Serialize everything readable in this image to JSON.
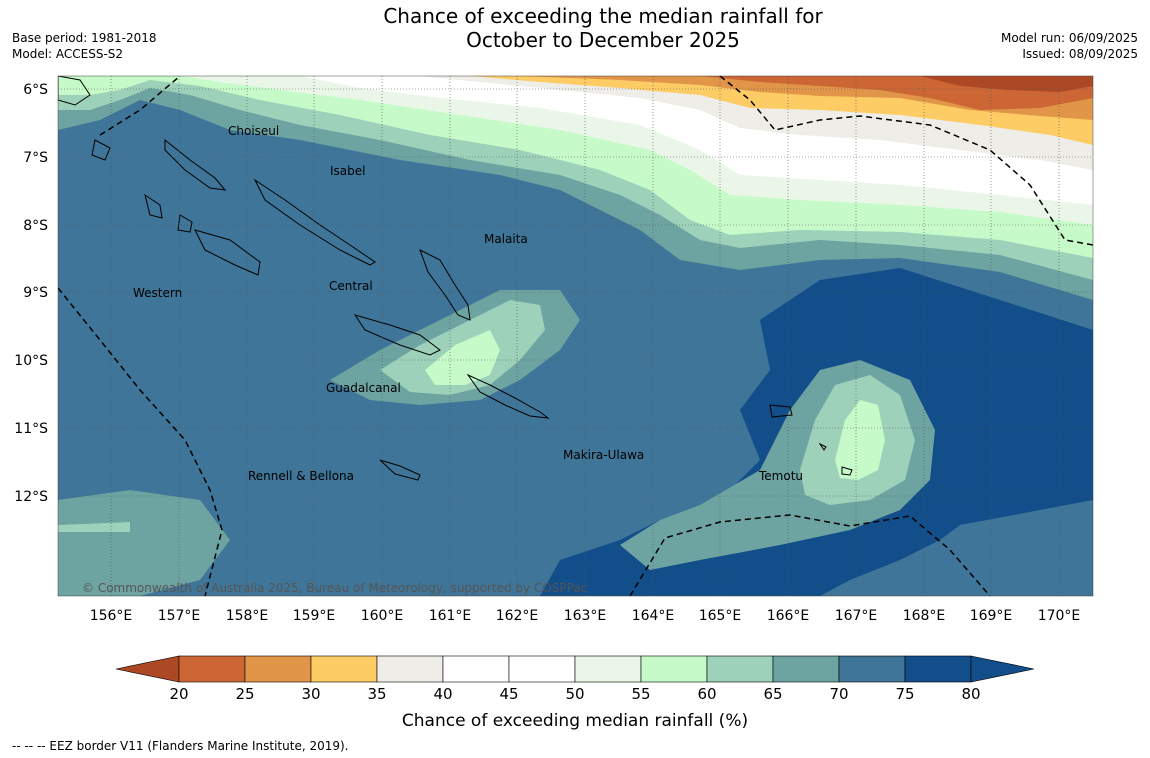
{
  "title": {
    "line1": "Chance of exceeding the median rainfall for",
    "line2": "October to December 2025"
  },
  "meta": {
    "base_period": "Base period: 1981-2018",
    "model": "Model: ACCESS-S2",
    "model_run": "Model run: 06/09/2025",
    "issued": "Issued: 08/09/2025"
  },
  "map": {
    "latitude_labels": [
      "6°S",
      "7°S",
      "8°S",
      "9°S",
      "10°S",
      "11°S",
      "12°S"
    ],
    "longitude_labels": [
      "156°E",
      "157°E",
      "158°E",
      "159°E",
      "160°E",
      "161°E",
      "162°E",
      "163°E",
      "164°E",
      "165°E",
      "166°E",
      "167°E",
      "168°E",
      "169°E",
      "170°E"
    ],
    "regions": [
      "Choiseul",
      "Isabel",
      "Malaita",
      "Western",
      "Central",
      "Guadalcanal",
      "Makira-Ulawa",
      "Rennell & Bellona",
      "Temotu"
    ],
    "copyright": "© Commonwealth of Australia 2025, Bureau of Meteorology, supported by COSPPac"
  },
  "colorbar": {
    "title": "Chance of exceeding median rainfall (%)",
    "ticks": [
      "20",
      "25",
      "30",
      "35",
      "40",
      "45",
      "50",
      "55",
      "60",
      "65",
      "70",
      "75",
      "80"
    ],
    "colors": [
      "#ad4824",
      "#cc6634",
      "#e19548",
      "#fdcc65",
      "#eeede7",
      "#ffffff",
      "#ffffff",
      "#eaf6e8",
      "#c6fac8",
      "#9dd1ba",
      "#6da3a0",
      "#3f7598",
      "#124e89"
    ]
  },
  "eez_note": "--  --  -- EEZ border V11 (Flanders Marine Institute, 2019)."
}
